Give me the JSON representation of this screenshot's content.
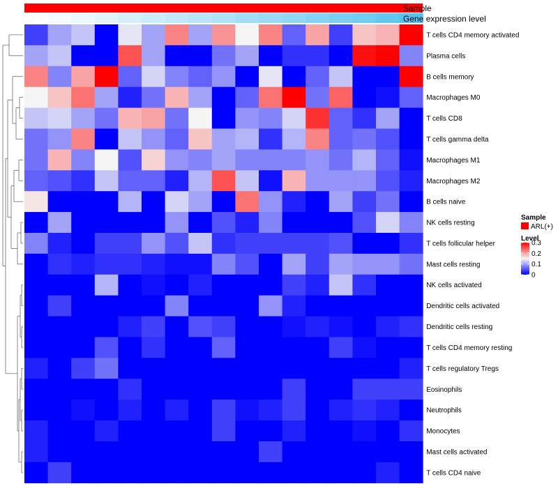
{
  "chart_data": {
    "type": "heatmap",
    "annotation_rows": [
      {
        "label": "Sample",
        "color": "#ff0000"
      },
      {
        "label": "Gene expression level",
        "gradient": [
          "#ffffff",
          "#55c2f0"
        ]
      }
    ],
    "rows": [
      "T cells CD4 memory activated",
      "Plasma cells",
      "B cells memory",
      "Macrophages M0",
      "T cells CD8",
      "T cells gamma delta",
      "Macrophages M1",
      "Macrophages M2",
      "B cells naive",
      "NK cells resting",
      "T cells follicular helper",
      "Mast cells resting",
      "NK cells activated",
      "Dendritic cells activated",
      "Dendritic cells resting",
      "T cells CD4 memory resting",
      "T cells regulatory  Tregs",
      "Eosinophils",
      "Neutrophils",
      "Monocytes",
      "Mast cells activated",
      "T cells CD4 naive"
    ],
    "n_columns": 17,
    "values": [
      [
        0.04,
        0.1,
        0.12,
        0.0,
        0.14,
        0.1,
        0.22,
        0.1,
        0.21,
        0.15,
        0.22,
        0.06,
        0.2,
        0.04,
        0.18,
        0.19,
        0.3
      ],
      [
        0.1,
        0.12,
        0.0,
        0.0,
        0.25,
        0.1,
        0.0,
        0.0,
        0.07,
        0.1,
        0.0,
        0.03,
        0.03,
        0.0,
        0.29,
        0.3,
        0.08
      ],
      [
        0.22,
        0.08,
        0.2,
        0.3,
        0.06,
        0.13,
        0.08,
        0.06,
        0.09,
        0.0,
        0.14,
        0.0,
        0.06,
        0.12,
        0.0,
        0.0,
        0.3
      ],
      [
        0.15,
        0.18,
        0.23,
        0.1,
        0.02,
        0.07,
        0.19,
        0.1,
        0.0,
        0.06,
        0.23,
        0.3,
        0.07,
        0.24,
        0.0,
        0.01,
        0.06
      ],
      [
        0.12,
        0.13,
        0.1,
        0.07,
        0.19,
        0.2,
        0.07,
        0.15,
        0.0,
        0.09,
        0.08,
        0.13,
        0.27,
        0.06,
        0.03,
        0.1,
        0.0
      ],
      [
        0.07,
        0.09,
        0.22,
        0.0,
        0.12,
        0.09,
        0.06,
        0.18,
        0.1,
        0.11,
        0.03,
        0.11,
        0.22,
        0.06,
        0.07,
        0.05,
        0.0
      ],
      [
        0.07,
        0.19,
        0.08,
        0.15,
        0.05,
        0.17,
        0.09,
        0.08,
        0.1,
        0.08,
        0.08,
        0.08,
        0.09,
        0.07,
        0.11,
        0.06,
        0.01
      ],
      [
        0.06,
        0.05,
        0.03,
        0.12,
        0.06,
        0.06,
        0.02,
        0.11,
        0.25,
        0.12,
        0.01,
        0.19,
        0.09,
        0.09,
        0.09,
        0.05,
        0.02
      ],
      [
        0.16,
        0.0,
        0.0,
        0.0,
        0.11,
        0.0,
        0.13,
        0.1,
        0.0,
        0.23,
        0.09,
        0.02,
        0.0,
        0.1,
        0.04,
        0.07,
        0.0
      ],
      [
        0.0,
        0.1,
        0.0,
        0.0,
        0.0,
        0.0,
        0.09,
        0.0,
        0.05,
        0.02,
        0.08,
        0.0,
        0.0,
        0.0,
        0.05,
        0.13,
        0.08
      ],
      [
        0.08,
        0.02,
        0.0,
        0.04,
        0.04,
        0.09,
        0.05,
        0.12,
        0.03,
        0.04,
        0.04,
        0.04,
        0.04,
        0.05,
        0.0,
        0.0,
        0.03
      ],
      [
        0.0,
        0.03,
        0.02,
        0.03,
        0.03,
        0.02,
        0.01,
        0.01,
        0.08,
        0.05,
        0.0,
        0.1,
        0.04,
        0.1,
        0.09,
        0.09,
        0.07
      ],
      [
        0.0,
        0.0,
        0.0,
        0.11,
        0.0,
        0.01,
        0.0,
        0.02,
        0.0,
        0.0,
        0.0,
        0.04,
        0.02,
        0.12,
        0.03,
        0.0,
        0.0
      ],
      [
        0.0,
        0.04,
        0.0,
        0.0,
        0.0,
        0.0,
        0.08,
        0.0,
        0.0,
        0.0,
        0.09,
        0.02,
        0.0,
        0.0,
        0.0,
        0.0,
        0.0
      ],
      [
        0.0,
        0.0,
        0.0,
        0.0,
        0.02,
        0.04,
        0.0,
        0.05,
        0.04,
        0.0,
        0.0,
        0.01,
        0.02,
        0.01,
        0.0,
        0.02,
        0.03
      ],
      [
        0.0,
        0.0,
        0.0,
        0.05,
        0.0,
        0.03,
        0.0,
        0.0,
        0.06,
        0.0,
        0.0,
        0.0,
        0.0,
        0.04,
        0.01,
        0.0,
        0.0
      ],
      [
        0.02,
        0.0,
        0.04,
        0.07,
        0.0,
        0.0,
        0.0,
        0.0,
        0.0,
        0.0,
        0.0,
        0.0,
        0.0,
        0.0,
        0.0,
        0.0,
        0.02
      ],
      [
        0.0,
        0.0,
        0.0,
        0.0,
        0.03,
        0.0,
        0.0,
        0.0,
        0.0,
        0.0,
        0.0,
        0.04,
        0.0,
        0.0,
        0.04,
        0.04,
        0.04
      ],
      [
        0.0,
        0.0,
        0.01,
        0.0,
        0.02,
        0.0,
        0.02,
        0.0,
        0.04,
        0.01,
        0.02,
        0.04,
        0.0,
        0.02,
        0.03,
        0.02,
        0.0
      ],
      [
        0.02,
        0.0,
        0.0,
        0.02,
        0.0,
        0.0,
        0.0,
        0.0,
        0.04,
        0.0,
        0.0,
        0.02,
        0.0,
        0.0,
        0.01,
        0.0,
        0.03
      ],
      [
        0.02,
        0.0,
        0.0,
        0.0,
        0.0,
        0.0,
        0.0,
        0.0,
        0.0,
        0.0,
        0.04,
        0.0,
        0.0,
        0.0,
        0.0,
        0.0,
        0.0
      ],
      [
        0.0,
        0.04,
        0.0,
        0.0,
        0.0,
        0.0,
        0.0,
        0.0,
        0.0,
        0.0,
        0.0,
        0.0,
        0.0,
        0.0,
        0.0,
        0.02,
        0.0
      ]
    ],
    "gene_expression_level": [
      0.0,
      0.06,
      0.12,
      0.18,
      0.24,
      0.3,
      0.36,
      0.42,
      0.48,
      0.54,
      0.6,
      0.66,
      0.72,
      0.78,
      0.84,
      0.92,
      1.0
    ],
    "color_scale": {
      "min": 0,
      "mid": 0.15,
      "max": 0.3,
      "low": "#0000ff",
      "mid_color": "#f5f5f5",
      "high": "#ff0000"
    },
    "legend": {
      "sample_title": "Sample",
      "sample_item": "ARL(+)",
      "sample_color": "#ff0000",
      "level_title": "Level",
      "level_ticks": [
        "0.3",
        "0.2",
        "0.1",
        "0"
      ],
      "level_tick_values": [
        0.3,
        0.2,
        0.1,
        0
      ],
      "placement": "right"
    },
    "dendrogram": "row clustering tree on left"
  }
}
